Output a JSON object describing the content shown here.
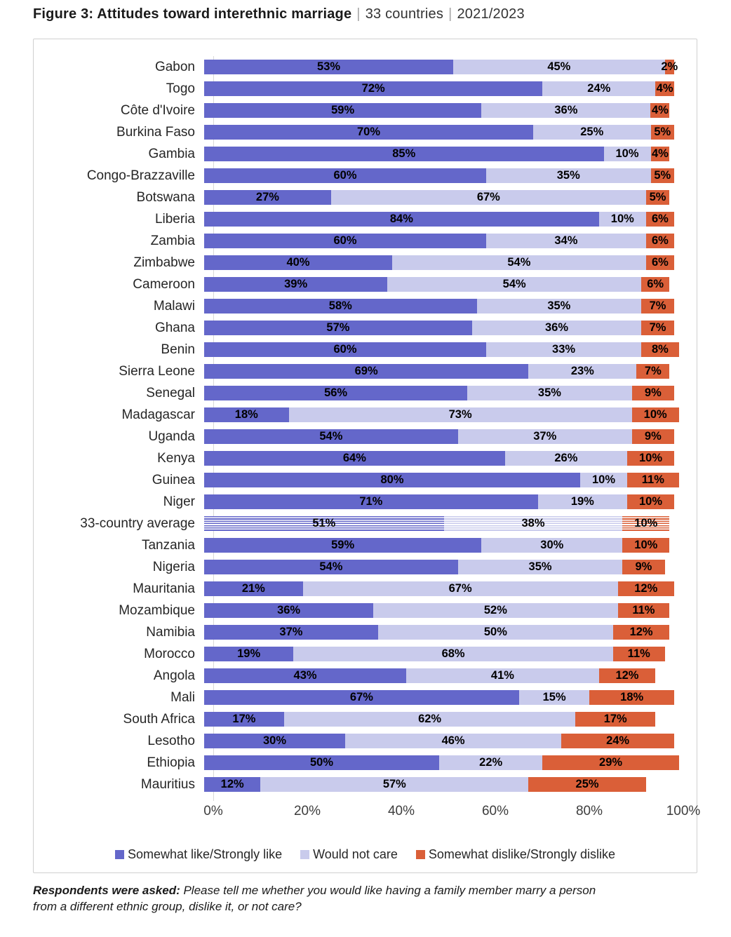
{
  "header": {
    "figure_label": "Figure 3: Attitudes toward interethnic marriage",
    "separator": "|",
    "countries_note": "33 countries",
    "period": "2021/2023"
  },
  "chart_data": {
    "type": "bar",
    "stacked": true,
    "orientation": "horizontal",
    "title": "Figure 3: Attitudes toward interethnic marriage",
    "xlabel": "",
    "ylabel": "",
    "xlim": [
      0,
      100
    ],
    "xticks": [
      "0%",
      "20%",
      "40%",
      "60%",
      "80%",
      "100%"
    ],
    "grid": false,
    "legend_position": "bottom",
    "highlight_category": "33-country average",
    "categories": [
      "Gabon",
      "Togo",
      "Côte d'Ivoire",
      "Burkina Faso",
      "Gambia",
      "Congo-Brazzaville",
      "Botswana",
      "Liberia",
      "Zambia",
      "Zimbabwe",
      "Cameroon",
      "Malawi",
      "Ghana",
      "Benin",
      "Sierra Leone",
      "Senegal",
      "Madagascar",
      "Uganda",
      "Kenya",
      "Guinea",
      "Niger",
      "33-country average",
      "Tanzania",
      "Nigeria",
      "Mauritania",
      "Mozambique",
      "Namibia",
      "Morocco",
      "Angola",
      "Mali",
      "South Africa",
      "Lesotho",
      "Ethiopia",
      "Mauritius"
    ],
    "series": [
      {
        "name": "Somewhat like/Strongly like",
        "key": "like",
        "color": "#6467CA",
        "values": [
          53,
          72,
          59,
          70,
          85,
          60,
          27,
          84,
          60,
          40,
          39,
          58,
          57,
          60,
          69,
          56,
          18,
          54,
          64,
          80,
          71,
          51,
          59,
          54,
          21,
          36,
          37,
          19,
          43,
          67,
          17,
          30,
          50,
          12
        ]
      },
      {
        "name": "Would not care",
        "key": "would-not-care",
        "color": "#C9CBEC",
        "values": [
          45,
          24,
          36,
          25,
          10,
          35,
          67,
          10,
          34,
          54,
          54,
          35,
          36,
          33,
          23,
          35,
          73,
          37,
          26,
          10,
          19,
          38,
          30,
          35,
          67,
          52,
          50,
          68,
          41,
          15,
          62,
          46,
          22,
          57
        ]
      },
      {
        "name": "Somewhat dislike/Strongly dislike",
        "key": "dislike",
        "color": "#DA5F38",
        "values": [
          2,
          4,
          4,
          5,
          4,
          5,
          5,
          6,
          6,
          6,
          6,
          7,
          7,
          8,
          7,
          9,
          10,
          9,
          10,
          11,
          10,
          10,
          10,
          9,
          12,
          11,
          12,
          11,
          12,
          18,
          17,
          24,
          29,
          25
        ]
      }
    ]
  },
  "footnote": {
    "lead": "Respondents were asked:",
    "question": " Please tell me whether you would like having a family member marry a person from a different ethnic group, dislike it, or not care?"
  }
}
